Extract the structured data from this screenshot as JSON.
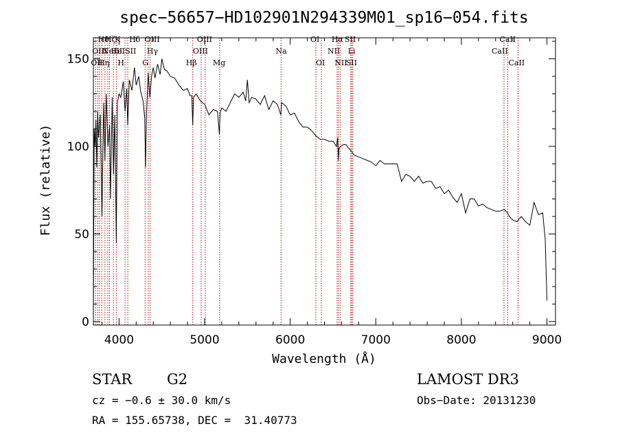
{
  "chart_data": {
    "type": "line",
    "title": "spec−56657−HD102901N294339M01_sp16−054.fits",
    "xlabel": "Wavelength (Å)",
    "ylabel": "Flux (relative)",
    "xlim": [
      3700,
      9100
    ],
    "ylim": [
      -2,
      162
    ],
    "xticks": [
      4000,
      5000,
      6000,
      7000,
      8000,
      9000
    ],
    "yticks": [
      0,
      50,
      100,
      150
    ],
    "line_color": "#000000",
    "marker_color": "#c00000",
    "series": [
      {
        "x": [
          3700,
          3705,
          3710,
          3720,
          3730,
          3740,
          3750,
          3760,
          3780,
          3800,
          3820,
          3835,
          3850,
          3870,
          3890,
          3900,
          3920,
          3935,
          3950,
          3968,
          3980,
          4000,
          4020,
          4050,
          4070,
          4090,
          4101,
          4120,
          4150,
          4180,
          4200,
          4230,
          4250,
          4280,
          4300,
          4310,
          4320,
          4340,
          4360,
          4380,
          4400,
          4420,
          4450,
          4480,
          4500,
          4530,
          4560,
          4600,
          4650,
          4700,
          4750,
          4800,
          4830,
          4850,
          4861,
          4870,
          4900,
          4950,
          5000,
          5050,
          5100,
          5150,
          5172,
          5180,
          5200,
          5250,
          5300,
          5350,
          5400,
          5450,
          5480,
          5500,
          5520,
          5550,
          5600,
          5650,
          5700,
          5750,
          5800,
          5850,
          5890,
          5900,
          5950,
          6000,
          6050,
          6100,
          6150,
          6200,
          6250,
          6300,
          6350,
          6400,
          6450,
          6500,
          6540,
          6555,
          6563,
          6570,
          6590,
          6620,
          6650,
          6700,
          6750,
          6800,
          6850,
          6900,
          6950,
          7000,
          7050,
          7100,
          7150,
          7200,
          7250,
          7300,
          7350,
          7400,
          7450,
          7500,
          7550,
          7600,
          7650,
          7700,
          7750,
          7800,
          7850,
          7900,
          7950,
          8000,
          8050,
          8100,
          8150,
          8200,
          8250,
          8300,
          8350,
          8400,
          8450,
          8500,
          8540,
          8560,
          8600,
          8650,
          8700,
          8750,
          8800,
          8850,
          8900,
          8950,
          8980,
          9000
        ],
        "values": [
          0,
          60,
          110,
          100,
          115,
          88,
          120,
          105,
          118,
          60,
          125,
          92,
          130,
          100,
          112,
          70,
          128,
          84,
          118,
          45,
          125,
          130,
          128,
          137,
          120,
          133,
          112,
          138,
          132,
          145,
          135,
          140,
          132,
          126,
          116,
          88,
          118,
          142,
          128,
          140,
          145,
          139,
          147,
          141,
          150,
          144,
          143,
          140,
          139,
          135,
          132,
          133,
          129,
          129,
          112,
          128,
          130,
          126,
          124,
          118,
          121,
          120,
          107,
          119,
          122,
          120,
          125,
          130,
          128,
          131,
          126,
          138,
          125,
          128,
          127,
          124,
          129,
          121,
          126,
          124,
          118,
          125,
          123,
          118,
          119,
          114,
          111,
          111,
          109,
          106,
          104,
          104,
          103,
          103,
          100,
          105,
          92,
          99,
          100,
          101,
          101,
          98,
          95,
          94,
          93,
          92,
          91,
          89,
          92,
          90,
          90,
          90,
          90,
          80,
          84,
          83,
          80,
          83,
          79,
          80,
          80,
          76,
          77,
          73,
          75,
          71,
          68,
          73,
          62,
          70,
          70,
          66,
          67,
          65,
          64,
          63,
          63,
          64,
          62,
          60,
          58,
          57,
          60,
          57,
          55,
          68,
          61,
          62,
          47,
          12
        ]
      }
    ],
    "line_markers": [
      {
        "wl": 3726,
        "label": "OII",
        "row": 2,
        "dx": -7
      },
      {
        "wl": 3750,
        "label": "OIII",
        "row": 1,
        "dx": -8
      },
      {
        "wl": 3770,
        "label": "Hθ",
        "row": 0,
        "dx": -2
      },
      {
        "wl": 3798,
        "label": "Hη",
        "row": 2,
        "dx": -5
      },
      {
        "wl": 3835,
        "label": "Hζ",
        "row": 0,
        "dx": 0
      },
      {
        "wl": 3869,
        "label": "NeIII",
        "row": 1,
        "dx": -8
      },
      {
        "wl": 3889,
        "label": "HeI",
        "row": 1,
        "dx": 2
      },
      {
        "wl": 3934,
        "label": "K",
        "row": 0,
        "dx": 2
      },
      {
        "wl": 3968,
        "label": "H",
        "row": 2,
        "dx": 2
      },
      {
        "wl": 4070,
        "label": "SII",
        "row": 1,
        "dx": 0
      },
      {
        "wl": 4102,
        "label": "Hδ",
        "row": 0,
        "dx": 2
      },
      {
        "wl": 4304,
        "label": "G",
        "row": 2,
        "dx": -4
      },
      {
        "wl": 4341,
        "label": "Hγ",
        "row": 1,
        "dx": -2
      },
      {
        "wl": 4363,
        "label": "OIII",
        "row": 0,
        "dx": -8
      },
      {
        "wl": 4861,
        "label": "Hβ",
        "row": 2,
        "dx": -10
      },
      {
        "wl": 4959,
        "label": "OIII",
        "row": 1,
        "dx": -12
      },
      {
        "wl": 5007,
        "label": "OIII",
        "row": 0,
        "dx": -12
      },
      {
        "wl": 5175,
        "label": "Mg",
        "row": 2,
        "dx": -10
      },
      {
        "wl": 5893,
        "label": "Na",
        "row": 1,
        "dx": -8
      },
      {
        "wl": 6300,
        "label": "OI",
        "row": 0,
        "dx": -8
      },
      {
        "wl": 6364,
        "label": "OI",
        "row": 2,
        "dx": -8
      },
      {
        "wl": 6548,
        "label": "NII",
        "row": 1,
        "dx": -14
      },
      {
        "wl": 6563,
        "label": "Hα",
        "row": 0,
        "dx": -10
      },
      {
        "wl": 6583,
        "label": "NII",
        "row": 2,
        "dx": -8
      },
      {
        "wl": 6707,
        "label": "Li",
        "row": 1,
        "dx": -4
      },
      {
        "wl": 6717,
        "label": "SII",
        "row": 0,
        "dx": -10
      },
      {
        "wl": 6731,
        "label": "SII",
        "row": 2,
        "dx": -10
      },
      {
        "wl": 8498,
        "label": "CaII",
        "row": 1,
        "dx": -18
      },
      {
        "wl": 8542,
        "label": "CaII",
        "row": 0,
        "dx": -12
      },
      {
        "wl": 8662,
        "label": "CaII",
        "row": 2,
        "dx": -14
      }
    ]
  },
  "info": {
    "object_class": "STAR",
    "subclass": "G2",
    "survey": "LAMOST DR3",
    "redshift_line": "cz = −0.6 ± 30.0 km/s",
    "obs_date": "Obs−Date: 20131230",
    "coords": "RA = 155.65738, DEC =  31.40773"
  }
}
